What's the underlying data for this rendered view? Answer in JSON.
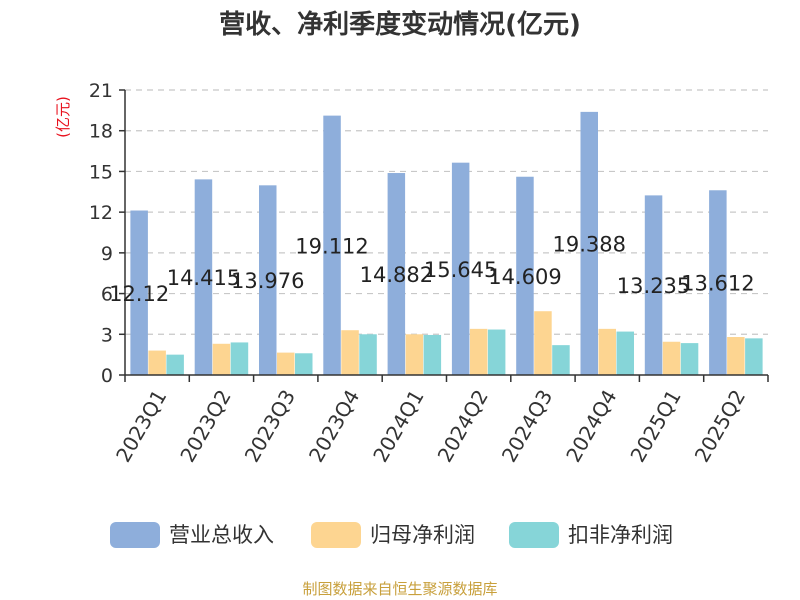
{
  "chart_data": {
    "type": "bar",
    "title": "营收、净利季度变动情况(亿元)",
    "ylabel": "(亿元)",
    "xlabel": "",
    "ylim": [
      0,
      21
    ],
    "yticks": [
      0,
      3,
      6,
      9,
      12,
      15,
      18,
      21
    ],
    "grid": true,
    "legend_position": "bottom",
    "categories": [
      "2023Q1",
      "2023Q2",
      "2023Q3",
      "2023Q4",
      "2024Q1",
      "2024Q2",
      "2024Q3",
      "2024Q4",
      "2025Q1",
      "2025Q2"
    ],
    "series": [
      {
        "name": "营业总收入",
        "color": "#8eaedb",
        "values": [
          12.12,
          14.415,
          13.976,
          19.112,
          14.882,
          15.645,
          14.609,
          19.388,
          13.235,
          13.612
        ],
        "labels": [
          "12.12",
          "14.415",
          "13.976",
          "19.112",
          "14.882",
          "15.645",
          "14.609",
          "19.388",
          "13.235",
          "13.612"
        ]
      },
      {
        "name": "归母净利润",
        "color": "#fdd591",
        "values": [
          1.8,
          2.3,
          1.65,
          3.3,
          3.0,
          3.4,
          4.7,
          3.4,
          2.45,
          2.8
        ]
      },
      {
        "name": "扣非净利润",
        "color": "#86d5d8",
        "values": [
          1.5,
          2.4,
          1.6,
          3.0,
          2.95,
          3.35,
          2.2,
          3.2,
          2.35,
          2.7
        ]
      }
    ],
    "source": "制图数据来自恒生聚源数据库"
  }
}
